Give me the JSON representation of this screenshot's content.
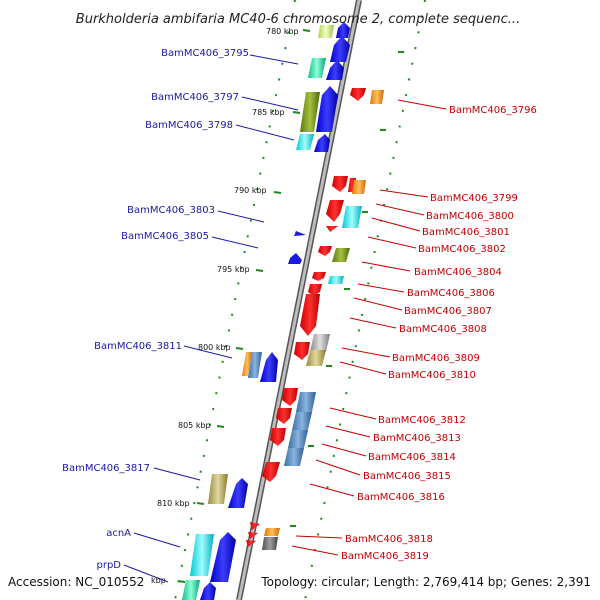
{
  "title": "Burkholderia ambifaria MC40-6 chromosome 2, complete sequenc...",
  "footer": {
    "accession": "Accession: NC_010552",
    "topology": "Topology: circular; Length: 2,769,414 bp; Genes: 2,391"
  },
  "colors": {
    "backbone": "#8c8c8c",
    "tick": "#228b22",
    "forward": "#1a1aa8",
    "reverse": "#c40000"
  },
  "kbp_labels": [
    "780 kbp",
    "785 kbp",
    "790 kbp",
    "795 kbp",
    "800 kbp",
    "805 kbp",
    "810 kbp",
    "kbp"
  ],
  "left_genes": [
    "BamMC406_3795",
    "BamMC406_3797",
    "BamMC406_3798",
    "BamMC406_3803",
    "BamMC406_3805",
    "BamMC406_3811",
    "BamMC406_3817",
    "acnA",
    "prpD"
  ],
  "right_genes": [
    "BamMC406_3796",
    "BamMC406_3799",
    "BamMC406_3800",
    "BamMC406_3801",
    "BamMC406_3802",
    "BamMC406_3804",
    "BamMC406_3806",
    "BamMC406_3807",
    "BamMC406_3808",
    "BamMC406_3809",
    "BamMC406_3810",
    "BamMC406_3812",
    "BamMC406_3813",
    "BamMC406_3814",
    "BamMC406_3815",
    "BamMC406_3816",
    "BamMC406_3818",
    "BamMC406_3819"
  ]
}
